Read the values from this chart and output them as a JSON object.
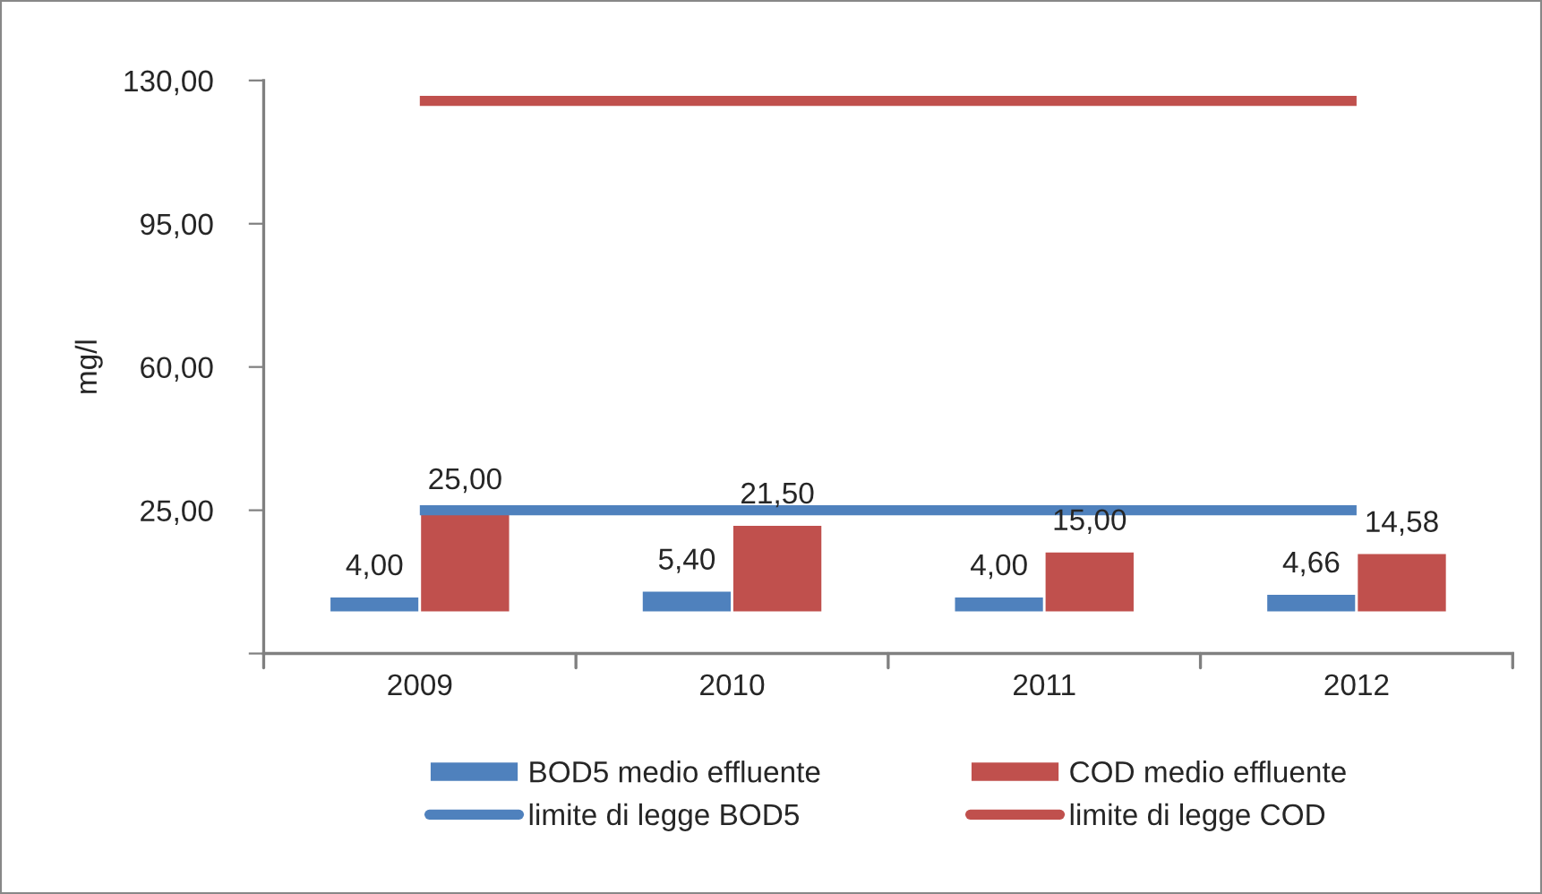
{
  "chart_data": {
    "type": "bar",
    "ylabel": "mg/l",
    "categories": [
      "2009",
      "2010",
      "2011",
      "2012"
    ],
    "series": [
      {
        "name": "BOD5 medio effluente",
        "color": "#4f81bd",
        "values": [
          4.0,
          5.4,
          4.0,
          4.66
        ],
        "value_labels": [
          "4,00",
          "5,40",
          "4,00",
          "4,66"
        ]
      },
      {
        "name": "COD medio effluente",
        "color": "#c0504d",
        "values": [
          25.0,
          21.5,
          15.0,
          14.58
        ],
        "value_labels": [
          "25,00",
          "21,50",
          "15,00",
          "14,58"
        ]
      },
      {
        "name": "limite di legge BOD5",
        "type": "line",
        "color": "#4f81bd",
        "values": [
          25,
          25,
          25,
          25
        ]
      },
      {
        "name": "limite di legge COD",
        "type": "line",
        "color": "#c0504d",
        "values": [
          125,
          125,
          125,
          125
        ]
      }
    ],
    "ylim": [
      -10,
      130
    ],
    "yticks": [
      {
        "value": -10,
        "label": null
      },
      {
        "value": 25,
        "label": "25,00"
      },
      {
        "value": 60,
        "label": "60,00"
      },
      {
        "value": 95,
        "label": "95,00"
      },
      {
        "value": 130,
        "label": "130,00"
      }
    ],
    "legend": "bottom",
    "grid": false
  }
}
